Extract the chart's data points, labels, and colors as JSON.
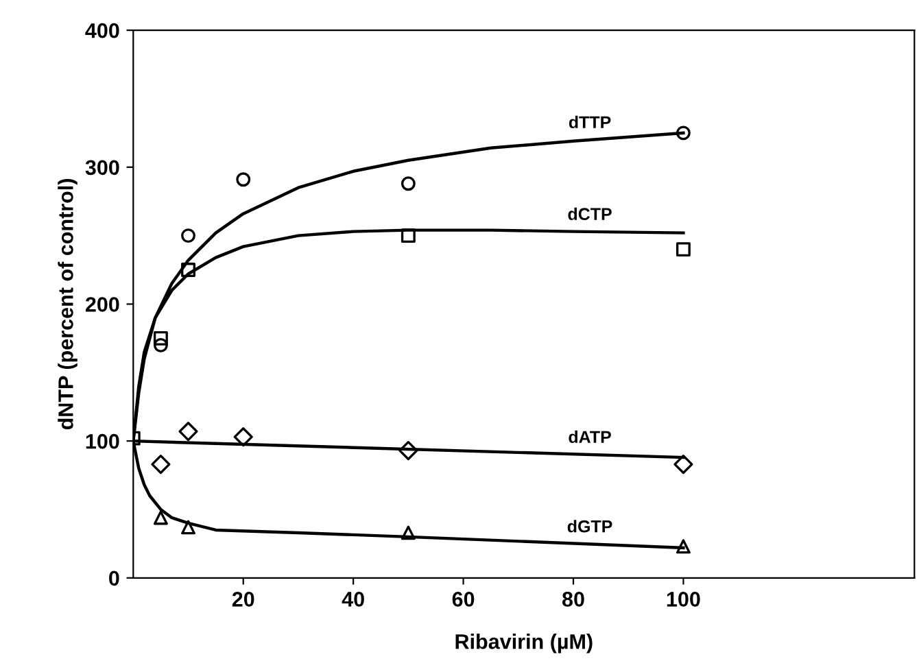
{
  "chart_data": {
    "type": "scatter",
    "xlabel": "Ribavirin (µM)",
    "ylabel": "dNTP (percent of control)",
    "xlim": [
      0,
      142
    ],
    "ylim": [
      0,
      400
    ],
    "xticks": [
      20,
      40,
      60,
      80,
      100
    ],
    "yticks": [
      0,
      100,
      200,
      300,
      400
    ],
    "grid": false,
    "legend": false,
    "series": [
      {
        "marker": "circle",
        "color": "#000000",
        "x": [
          5,
          10,
          20,
          50,
          100
        ],
        "values": [
          170,
          250,
          291,
          288,
          325
        ]
      },
      {
        "marker": "square",
        "color": "#000000",
        "x": [
          0,
          5,
          10,
          50,
          100
        ],
        "values": [
          102,
          175,
          225,
          250,
          240
        ]
      },
      {
        "marker": "diamond",
        "color": "#000000",
        "x": [
          5,
          10,
          20,
          50,
          100
        ],
        "values": [
          83,
          107,
          103,
          93,
          83
        ]
      },
      {
        "marker": "triangle",
        "color": "#000000",
        "x": [
          5,
          10,
          50,
          100
        ],
        "values": [
          44,
          37,
          33,
          23
        ]
      },
      {
        "type": "line",
        "name": "dTTP",
        "color": "#000000",
        "marker": "none",
        "x": [
          0,
          1,
          2,
          4,
          7,
          10,
          15,
          20,
          30,
          40,
          50,
          65,
          80,
          100
        ],
        "values": [
          100,
          135,
          160,
          190,
          215,
          232,
          252,
          266,
          285,
          297,
          305,
          314,
          319,
          325
        ]
      },
      {
        "type": "line",
        "name": "dCTP",
        "color": "#000000",
        "marker": "none",
        "x": [
          0,
          1,
          2,
          4,
          7,
          10,
          15,
          20,
          30,
          40,
          50,
          65,
          80,
          100
        ],
        "values": [
          100,
          140,
          165,
          190,
          210,
          222,
          234,
          242,
          250,
          253,
          254,
          254,
          253,
          252
        ]
      },
      {
        "type": "line",
        "name": "dATP",
        "color": "#000000",
        "marker": "none",
        "x": [
          0,
          100
        ],
        "values": [
          100,
          88
        ]
      },
      {
        "type": "line",
        "name": "dGTP",
        "color": "#000000",
        "marker": "none",
        "x": [
          0,
          1,
          2,
          3,
          5,
          7,
          10,
          15,
          30,
          50,
          100
        ],
        "values": [
          100,
          80,
          68,
          60,
          50,
          44,
          40,
          35,
          33,
          30,
          22
        ]
      }
    ]
  }
}
